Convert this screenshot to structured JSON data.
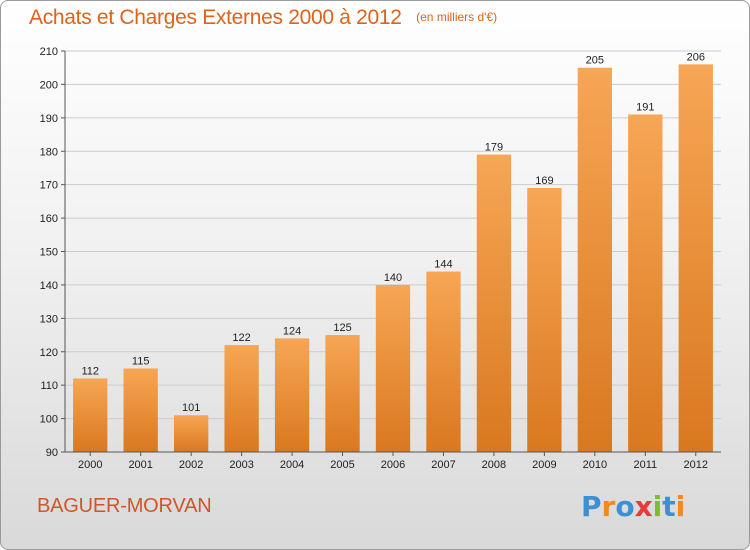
{
  "title": "Achats et Charges Externes 2000 à 2012",
  "unit": "(en milliers d'€)",
  "place": "BAGUER-MORVAN",
  "logo_text": "Proxiti",
  "colors": {
    "title": "#e0621a",
    "place": "#d2542a",
    "bar_light": "#f7a655",
    "bar_dark": "#d9781f",
    "grid": "#cccccc"
  },
  "chart_data": {
    "type": "bar",
    "categories": [
      "2000",
      "2001",
      "2002",
      "2003",
      "2004",
      "2005",
      "2006",
      "2007",
      "2008",
      "2009",
      "2010",
      "2011",
      "2012"
    ],
    "values": [
      112,
      115,
      101,
      122,
      124,
      125,
      140,
      144,
      179,
      169,
      205,
      191,
      206
    ],
    "ylim": [
      90,
      210
    ],
    "yticks": [
      90,
      100,
      110,
      120,
      130,
      140,
      150,
      160,
      170,
      180,
      190,
      200,
      210
    ],
    "grid": true,
    "data_labels": true
  }
}
